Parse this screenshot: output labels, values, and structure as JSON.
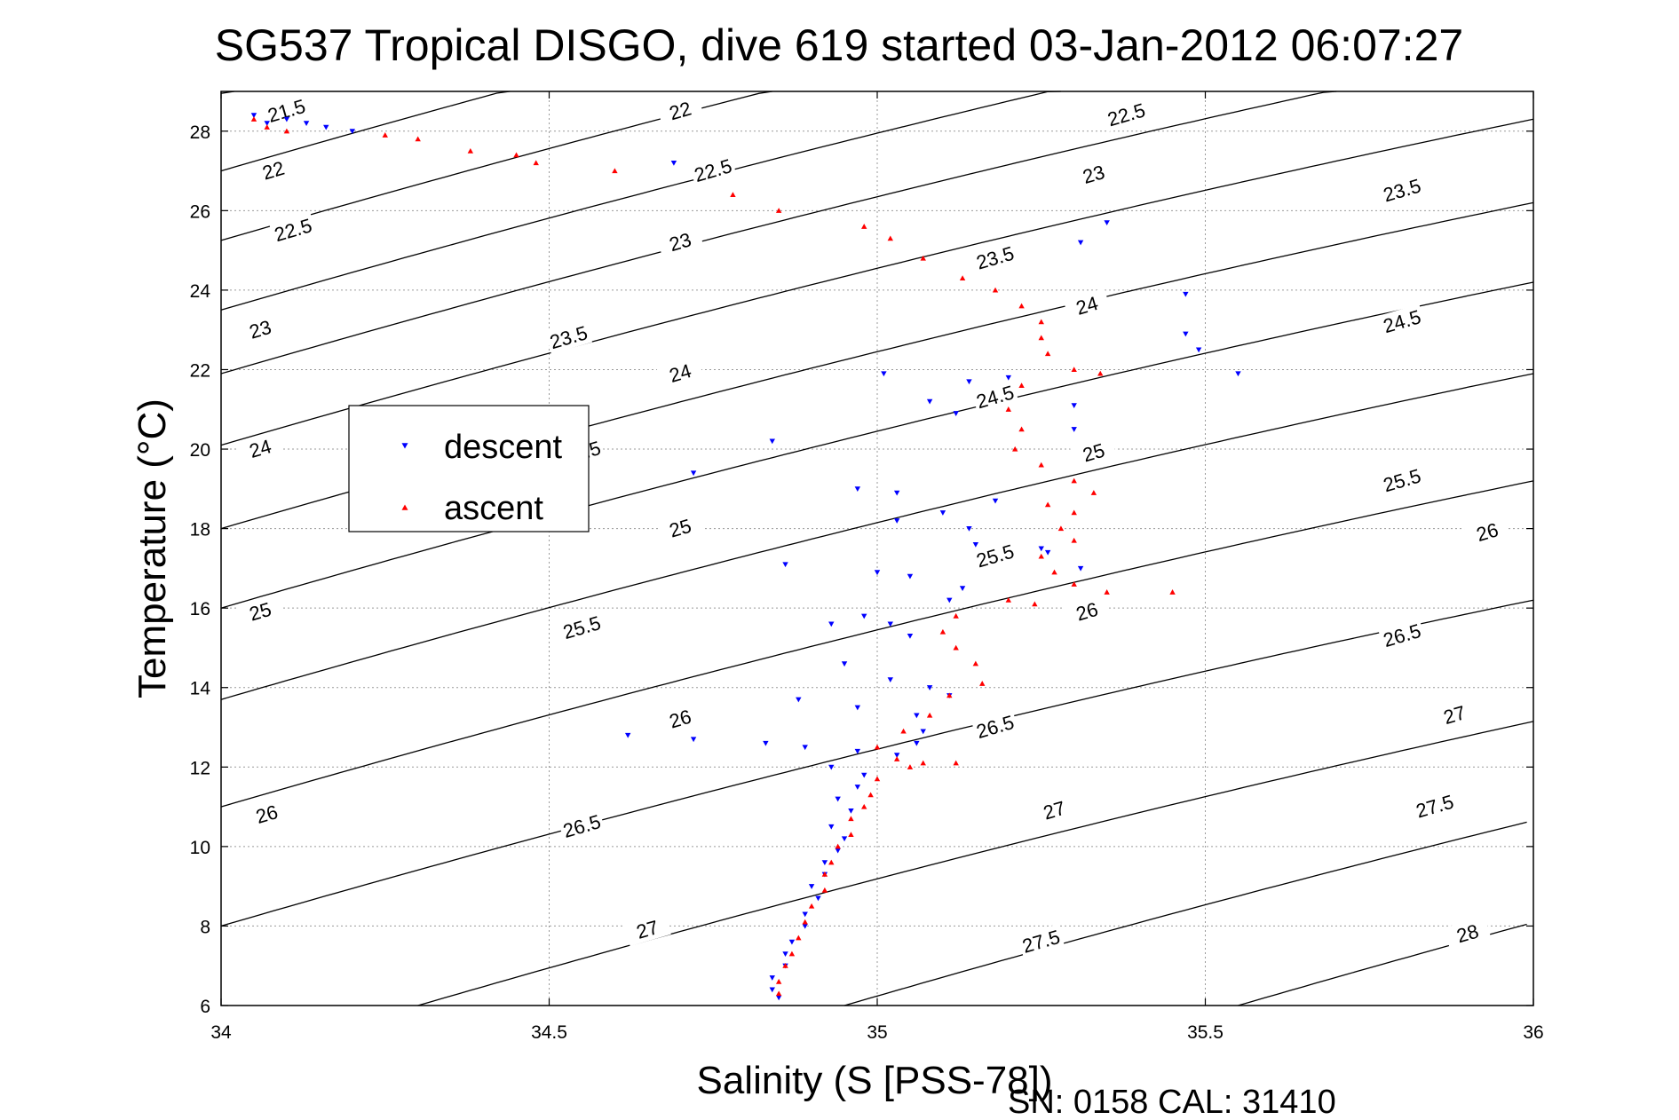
{
  "chart_data": {
    "type": "scatter",
    "title": "SG537 Tropical DISGO, dive 619 started 03-Jan-2012 06:07:27",
    "xlabel": "Salinity (S [PSS-78])",
    "ylabel": "Temperature (°C)",
    "footer": "SN: 0158  CAL: 31410",
    "xlim": [
      34,
      36
    ],
    "ylim": [
      6,
      29
    ],
    "xticks": [
      "34",
      "34.5",
      "35",
      "35.5",
      "36"
    ],
    "yticks": [
      "6",
      "8",
      "10",
      "12",
      "14",
      "16",
      "18",
      "20",
      "22",
      "24",
      "26",
      "28"
    ],
    "grid": true,
    "legend_position": "upper-left",
    "density_contours": [
      {
        "level": "21.5",
        "x0": 34,
        "T0": 28.95
      },
      {
        "level": "22",
        "x0": 34,
        "T0": 27.0
      },
      {
        "level": "22.5",
        "x0": 34,
        "T0": 25.25
      },
      {
        "level": "23",
        "x0": 34,
        "T0": 23.5
      },
      {
        "level": "23.5",
        "x0": 34,
        "T0": 21.9
      },
      {
        "level": "24",
        "x0": 34,
        "T0": 20.1
      },
      {
        "level": "24.5",
        "x0": 34,
        "T0": 18.0
      },
      {
        "level": "25",
        "x0": 34,
        "T0": 16.0
      },
      {
        "level": "25.5",
        "x0": 34,
        "T0": 13.7
      },
      {
        "level": "26",
        "x0": 34,
        "T0": 11.0
      },
      {
        "level": "26.5",
        "x0": 34,
        "T0": 8.0
      },
      {
        "level": "27",
        "x0": 34.3,
        "T0": 6.0
      },
      {
        "level": "27.5",
        "x0": 34.95,
        "T0": 6.0
      },
      {
        "level": "28",
        "x0": 35.55,
        "T0": 6.0
      }
    ],
    "contour_label_positions": [
      {
        "level": "21.5",
        "x": 34.1,
        "T": 28.5
      },
      {
        "level": "22",
        "x": 34.08,
        "T": 27.0
      },
      {
        "level": "22",
        "x": 34.7,
        "T": 28.5
      },
      {
        "level": "22.5",
        "x": 34.11,
        "T": 25.5
      },
      {
        "level": "22.5",
        "x": 34.75,
        "T": 27.0
      },
      {
        "level": "22.5",
        "x": 35.38,
        "T": 28.4
      },
      {
        "level": "23",
        "x": 34.06,
        "T": 23.0
      },
      {
        "level": "23",
        "x": 34.7,
        "T": 25.2
      },
      {
        "level": "23",
        "x": 35.33,
        "T": 26.9
      },
      {
        "level": "23.5",
        "x": 34.53,
        "T": 22.8
      },
      {
        "level": "23.5",
        "x": 35.18,
        "T": 24.8
      },
      {
        "level": "23.5",
        "x": 35.8,
        "T": 26.5
      },
      {
        "level": "24",
        "x": 34.06,
        "T": 20.0
      },
      {
        "level": "24",
        "x": 34.7,
        "T": 21.9
      },
      {
        "level": "24",
        "x": 35.32,
        "T": 23.6
      },
      {
        "level": "24.5",
        "x": 34.55,
        "T": 19.9
      },
      {
        "level": "24.5",
        "x": 35.18,
        "T": 21.3
      },
      {
        "level": "24.5",
        "x": 35.8,
        "T": 23.2
      },
      {
        "level": "25",
        "x": 34.06,
        "T": 15.9
      },
      {
        "level": "25",
        "x": 34.7,
        "T": 18.0
      },
      {
        "level": "25",
        "x": 35.33,
        "T": 19.9
      },
      {
        "level": "25.5",
        "x": 34.55,
        "T": 15.5
      },
      {
        "level": "25.5",
        "x": 35.18,
        "T": 17.3
      },
      {
        "level": "25.5",
        "x": 35.8,
        "T": 19.2
      },
      {
        "level": "26",
        "x": 34.07,
        "T": 10.8
      },
      {
        "level": "26",
        "x": 34.7,
        "T": 13.2
      },
      {
        "level": "26",
        "x": 35.32,
        "T": 15.9
      },
      {
        "level": "26",
        "x": 35.93,
        "T": 17.9
      },
      {
        "level": "26.5",
        "x": 34.55,
        "T": 10.5
      },
      {
        "level": "26.5",
        "x": 35.18,
        "T": 13.0
      },
      {
        "level": "26.5",
        "x": 35.8,
        "T": 15.3
      },
      {
        "level": "27",
        "x": 34.65,
        "T": 7.9
      },
      {
        "level": "27",
        "x": 35.27,
        "T": 10.9
      },
      {
        "level": "27",
        "x": 35.88,
        "T": 13.3
      },
      {
        "level": "27.5",
        "x": 35.25,
        "T": 7.6
      },
      {
        "level": "27.5",
        "x": 35.85,
        "T": 11.0
      },
      {
        "level": "28",
        "x": 35.9,
        "T": 7.8
      }
    ],
    "series": [
      {
        "name": "descent",
        "color": "#0000ff",
        "marker": "triangle-down",
        "points": [
          [
            34.05,
            28.4
          ],
          [
            34.07,
            28.2
          ],
          [
            34.1,
            28.3
          ],
          [
            34.13,
            28.2
          ],
          [
            34.16,
            28.1
          ],
          [
            34.2,
            28.0
          ],
          [
            34.69,
            27.2
          ],
          [
            35.35,
            25.7
          ],
          [
            35.31,
            25.2
          ],
          [
            35.47,
            23.9
          ],
          [
            35.49,
            22.5
          ],
          [
            35.47,
            22.9
          ],
          [
            35.55,
            21.9
          ],
          [
            35.01,
            21.9
          ],
          [
            35.14,
            21.7
          ],
          [
            35.2,
            21.8
          ],
          [
            35.08,
            21.2
          ],
          [
            35.12,
            20.9
          ],
          [
            35.3,
            21.1
          ],
          [
            35.3,
            20.5
          ],
          [
            34.84,
            20.2
          ],
          [
            34.72,
            19.4
          ],
          [
            34.97,
            19.0
          ],
          [
            35.03,
            18.9
          ],
          [
            35.18,
            18.7
          ],
          [
            35.1,
            18.4
          ],
          [
            35.03,
            18.2
          ],
          [
            35.14,
            18.0
          ],
          [
            35.15,
            17.6
          ],
          [
            35.25,
            17.5
          ],
          [
            35.26,
            17.4
          ],
          [
            35.31,
            17.0
          ],
          [
            34.86,
            17.1
          ],
          [
            35.0,
            16.9
          ],
          [
            35.05,
            16.8
          ],
          [
            35.13,
            16.5
          ],
          [
            35.11,
            16.2
          ],
          [
            34.98,
            15.8
          ],
          [
            35.02,
            15.6
          ],
          [
            34.93,
            15.6
          ],
          [
            35.05,
            15.3
          ],
          [
            34.95,
            14.6
          ],
          [
            35.02,
            14.2
          ],
          [
            35.08,
            14.0
          ],
          [
            35.11,
            13.8
          ],
          [
            34.88,
            13.7
          ],
          [
            34.97,
            13.5
          ],
          [
            35.06,
            13.3
          ],
          [
            34.62,
            12.8
          ],
          [
            34.72,
            12.7
          ],
          [
            34.83,
            12.6
          ],
          [
            34.89,
            12.5
          ],
          [
            34.97,
            12.4
          ],
          [
            35.03,
            12.3
          ],
          [
            35.06,
            12.6
          ],
          [
            35.07,
            12.9
          ],
          [
            34.93,
            12.0
          ],
          [
            34.98,
            11.8
          ],
          [
            34.97,
            11.5
          ],
          [
            34.94,
            11.2
          ],
          [
            34.96,
            10.9
          ],
          [
            34.93,
            10.5
          ],
          [
            34.95,
            10.2
          ],
          [
            34.94,
            9.9
          ],
          [
            34.92,
            9.6
          ],
          [
            34.92,
            9.3
          ],
          [
            34.9,
            9.0
          ],
          [
            34.91,
            8.7
          ],
          [
            34.89,
            8.3
          ],
          [
            34.89,
            8.0
          ],
          [
            34.87,
            7.6
          ],
          [
            34.86,
            7.3
          ],
          [
            34.86,
            7.0
          ],
          [
            34.84,
            6.7
          ],
          [
            34.84,
            6.4
          ],
          [
            34.85,
            6.2
          ]
        ]
      },
      {
        "name": "ascent",
        "color": "#ff0000",
        "marker": "triangle-up",
        "points": [
          [
            34.05,
            28.3
          ],
          [
            34.07,
            28.1
          ],
          [
            34.1,
            28.0
          ],
          [
            34.25,
            27.9
          ],
          [
            34.3,
            27.8
          ],
          [
            34.38,
            27.5
          ],
          [
            34.45,
            27.4
          ],
          [
            34.48,
            27.2
          ],
          [
            34.6,
            27.0
          ],
          [
            34.78,
            26.4
          ],
          [
            34.85,
            26.0
          ],
          [
            34.98,
            25.6
          ],
          [
            35.02,
            25.3
          ],
          [
            35.07,
            24.8
          ],
          [
            35.13,
            24.3
          ],
          [
            35.18,
            24.0
          ],
          [
            35.22,
            23.6
          ],
          [
            35.25,
            23.2
          ],
          [
            35.25,
            22.8
          ],
          [
            35.26,
            22.4
          ],
          [
            35.3,
            22.0
          ],
          [
            35.34,
            21.9
          ],
          [
            35.22,
            21.6
          ],
          [
            35.2,
            21.0
          ],
          [
            35.22,
            20.5
          ],
          [
            35.21,
            20.0
          ],
          [
            35.25,
            19.6
          ],
          [
            35.3,
            19.2
          ],
          [
            35.33,
            18.9
          ],
          [
            35.26,
            18.6
          ],
          [
            35.3,
            18.4
          ],
          [
            35.28,
            18.0
          ],
          [
            35.3,
            17.7
          ],
          [
            35.25,
            17.3
          ],
          [
            35.27,
            16.9
          ],
          [
            35.3,
            16.6
          ],
          [
            35.35,
            16.4
          ],
          [
            35.45,
            16.4
          ],
          [
            35.2,
            16.2
          ],
          [
            35.24,
            16.1
          ],
          [
            35.12,
            15.8
          ],
          [
            35.1,
            15.4
          ],
          [
            35.12,
            15.0
          ],
          [
            35.15,
            14.6
          ],
          [
            35.16,
            14.1
          ],
          [
            35.11,
            13.8
          ],
          [
            35.08,
            13.3
          ],
          [
            35.04,
            12.9
          ],
          [
            35.0,
            12.5
          ],
          [
            35.03,
            12.2
          ],
          [
            35.07,
            12.1
          ],
          [
            35.12,
            12.1
          ],
          [
            35.05,
            12.0
          ],
          [
            35.0,
            11.7
          ],
          [
            34.99,
            11.3
          ],
          [
            34.98,
            11.0
          ],
          [
            34.96,
            10.7
          ],
          [
            34.96,
            10.3
          ],
          [
            34.94,
            10.0
          ],
          [
            34.93,
            9.6
          ],
          [
            34.92,
            9.3
          ],
          [
            34.92,
            8.9
          ],
          [
            34.9,
            8.5
          ],
          [
            34.89,
            8.1
          ],
          [
            34.88,
            7.7
          ],
          [
            34.87,
            7.3
          ],
          [
            34.86,
            7.0
          ],
          [
            34.85,
            6.6
          ],
          [
            34.85,
            6.3
          ]
        ]
      }
    ]
  }
}
